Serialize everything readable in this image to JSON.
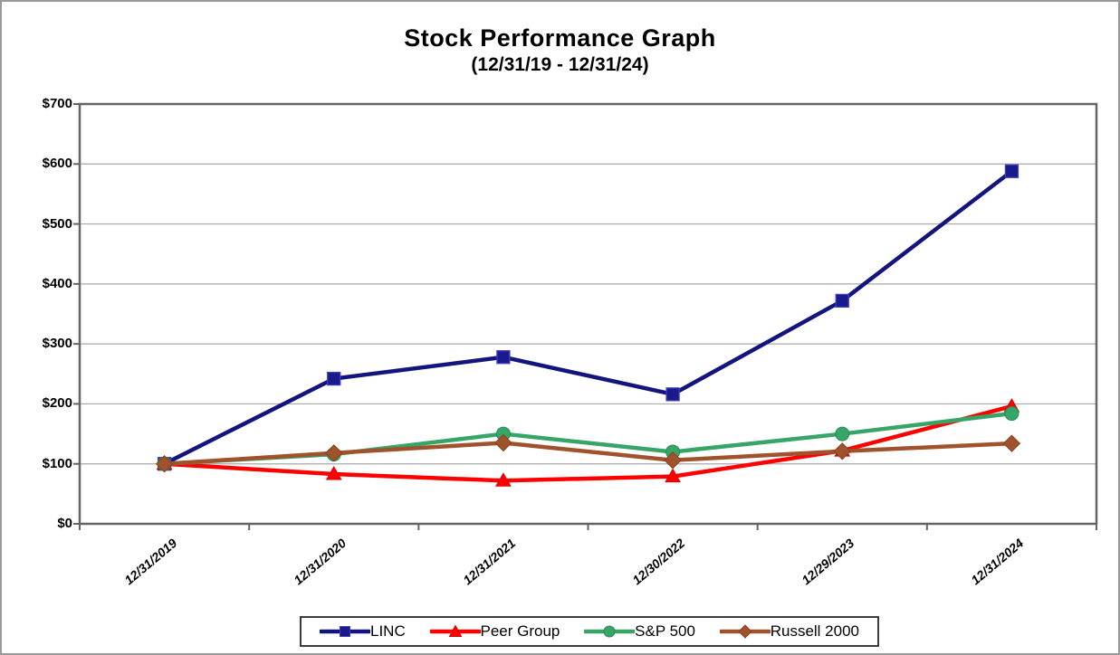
{
  "page": {
    "background": "#ffffff",
    "border_color": "#9a9a9a"
  },
  "chart_data": {
    "type": "line",
    "title": "Stock Performance Graph",
    "subtitle": "(12/31/19 - 12/31/24)",
    "x_categories": [
      "12/31/2019",
      "12/31/2020",
      "12/31/2021",
      "12/30/2022",
      "12/29/2023",
      "12/31/2024"
    ],
    "y_axis": {
      "min": 0,
      "max": 700,
      "tick_step": 100,
      "tick_labels": [
        "$0",
        "$100",
        "$200",
        "$300",
        "$400",
        "$500",
        "$600",
        "$700"
      ]
    },
    "grid": true,
    "gridline_color": "#a9a9a9",
    "plot_border_color": "#646464",
    "legend_position": "bottom",
    "series": [
      {
        "name": "LINC",
        "marker": "square",
        "color": "#14147e",
        "marker_fill": "#1a1a8c",
        "marker_stroke": "#3d3dbe",
        "values": [
          100,
          242,
          278,
          216,
          372,
          588
        ]
      },
      {
        "name": "Peer Group",
        "marker": "triangle",
        "color": "#fe0000",
        "marker_fill": "#fe0000",
        "marker_stroke": "#d40000",
        "values": [
          100,
          83,
          72,
          79,
          122,
          196
        ]
      },
      {
        "name": "S&P 500",
        "marker": "circle",
        "color": "#36a567",
        "marker_fill": "#36a567",
        "marker_stroke": "#2c8a55",
        "values": [
          100,
          116,
          150,
          120,
          150,
          184
        ]
      },
      {
        "name": "Russell 2000",
        "marker": "diamond",
        "color": "#a0522d",
        "marker_fill": "#a0522d",
        "marker_stroke": "#86421f",
        "values": [
          100,
          118,
          135,
          106,
          121,
          134
        ]
      }
    ]
  }
}
